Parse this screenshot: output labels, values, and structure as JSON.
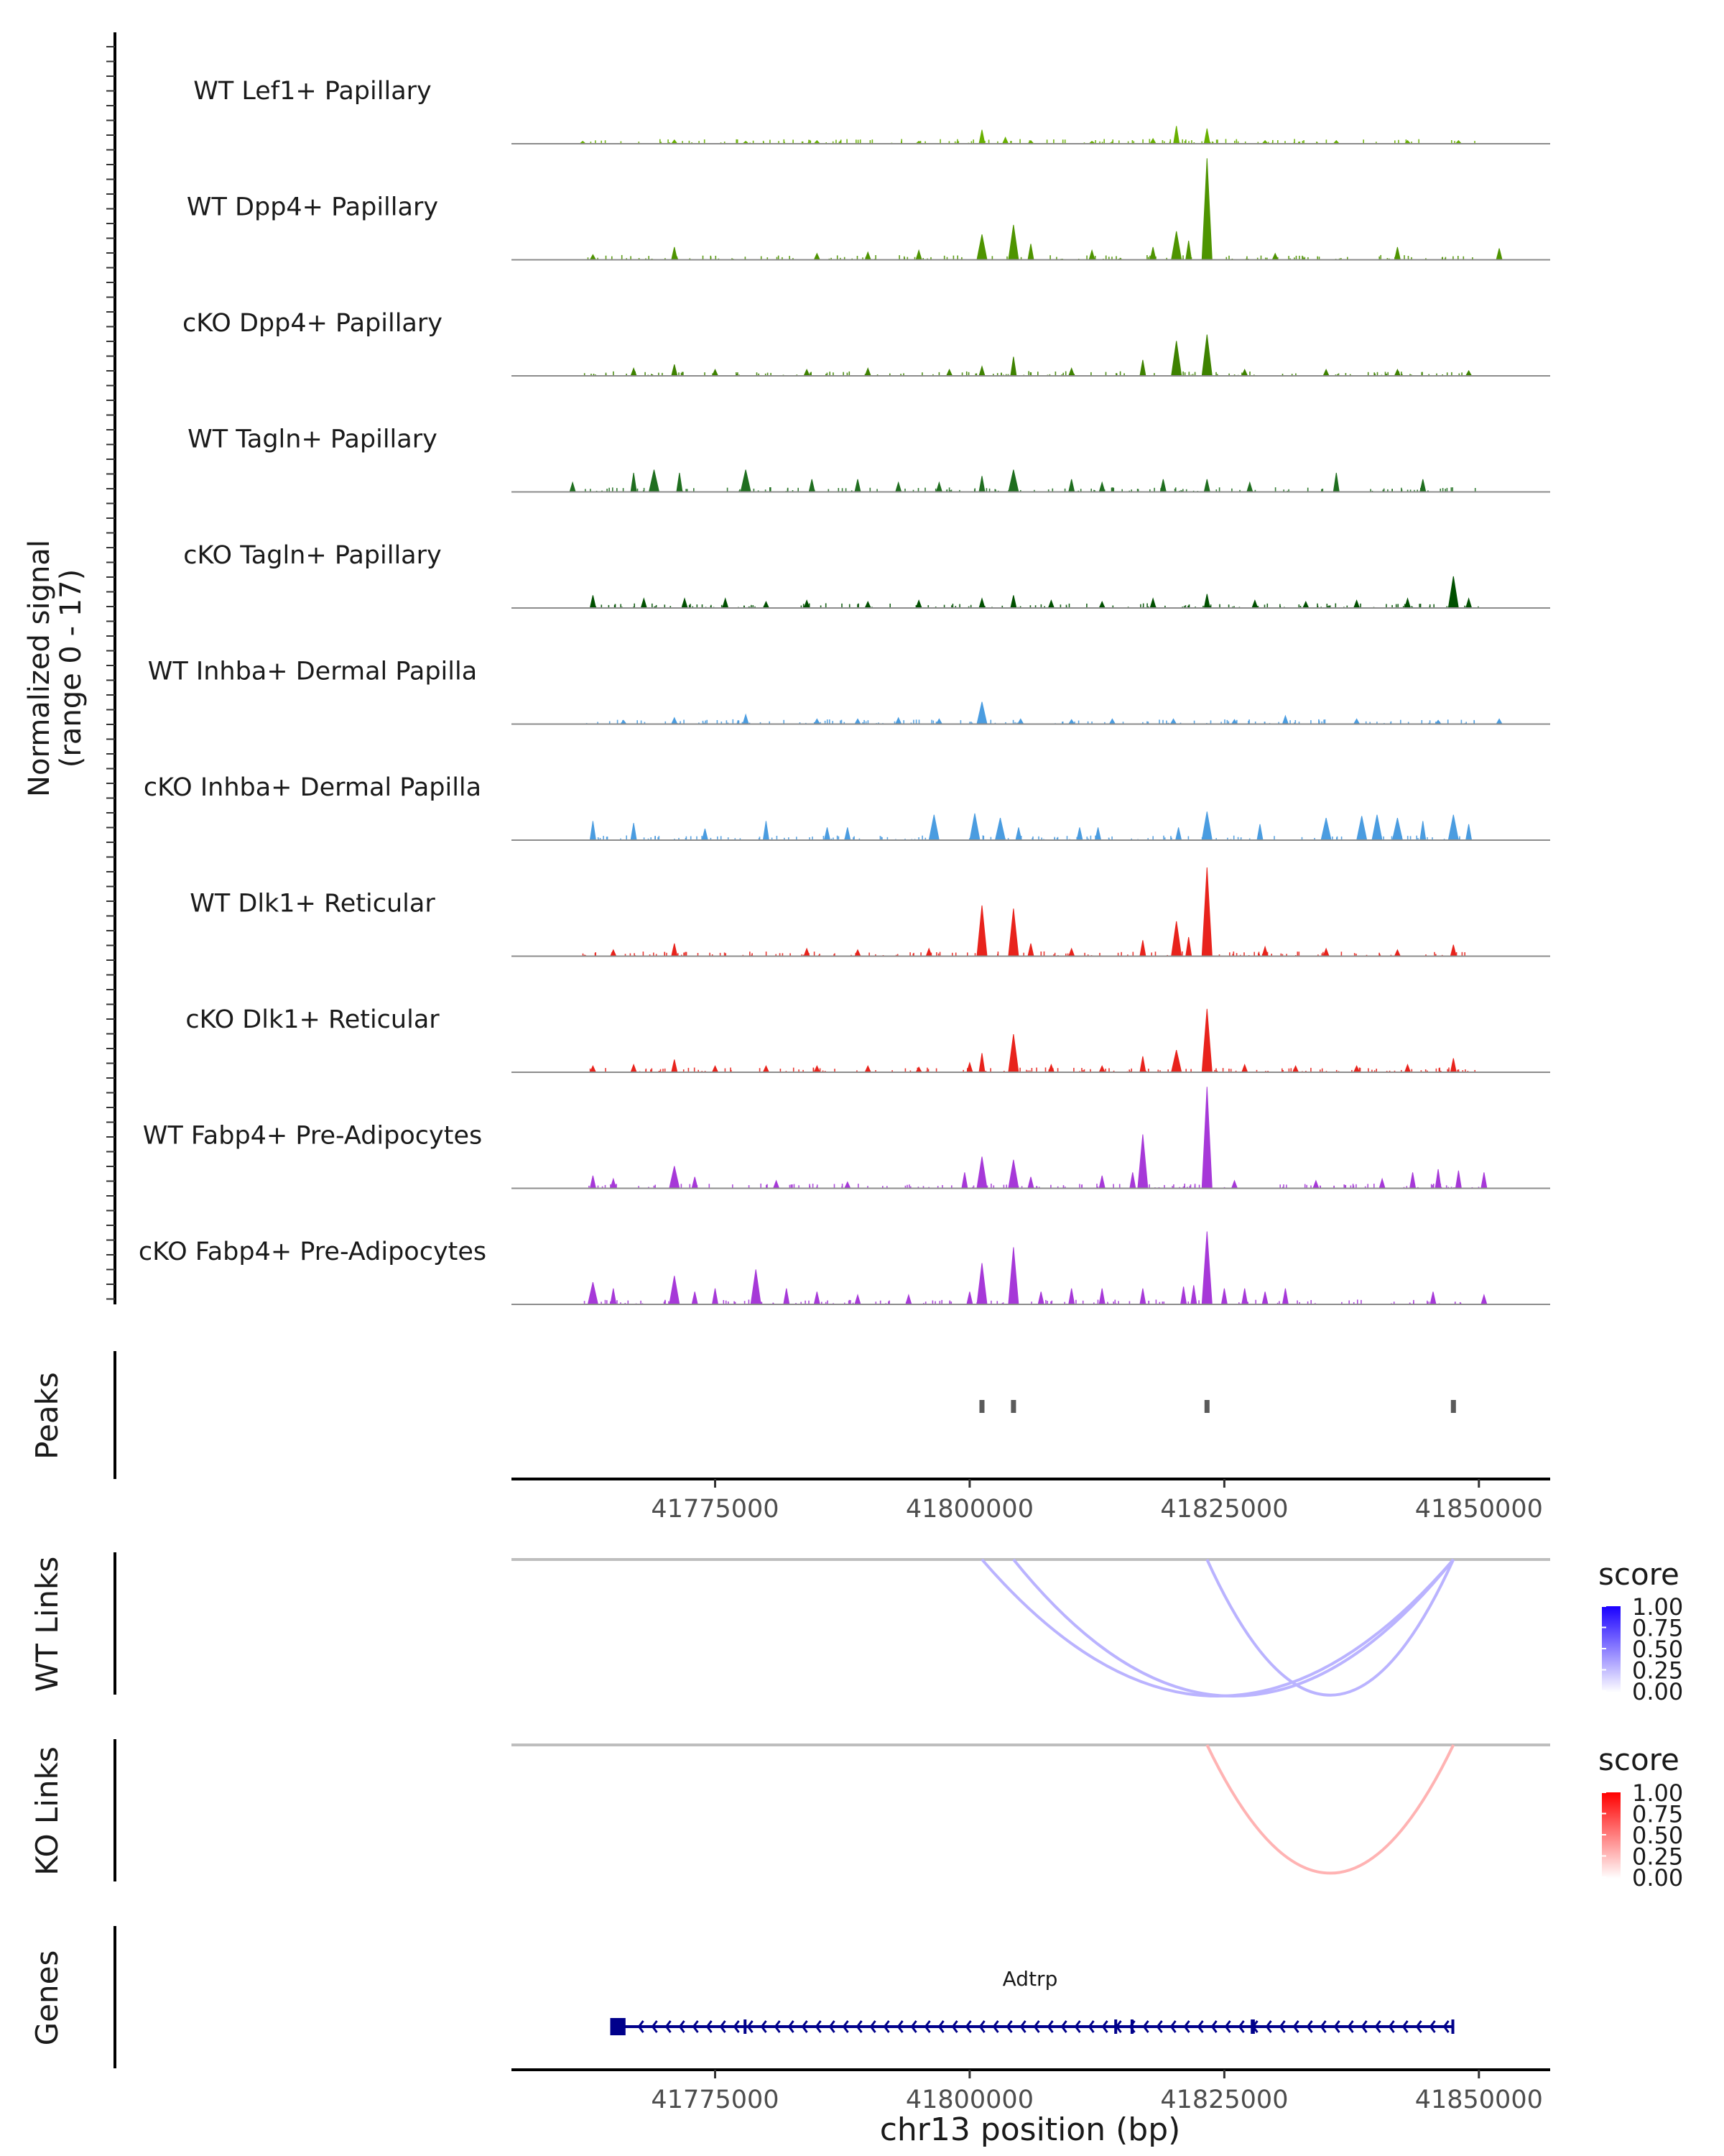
{
  "chart_data": {
    "type": "genome-coverage",
    "region": {
      "chrom": "chr13",
      "start": 41755000,
      "end": 41857000
    },
    "coverage": {
      "ylabel_line1": "Normalized signal",
      "ylabel_line2": "(range 0 - 17)",
      "ylim": [
        0,
        17
      ],
      "tracks": [
        {
          "name": "WT Lef1+ Papillary",
          "color": "#68b000",
          "peaks": [
            [
              41801200,
              2.2
            ],
            [
              41820300,
              2.8
            ],
            [
              41823300,
              2.4
            ],
            [
              41771000,
              0.6
            ],
            [
              41785000,
              0.5
            ],
            [
              41803500,
              1.0
            ],
            [
              41806000,
              0.5
            ],
            [
              41812000,
              0.4
            ],
            [
              41818000,
              0.8
            ],
            [
              41829000,
              0.5
            ],
            [
              41836000,
              0.5
            ],
            [
              41843000,
              0.5
            ],
            [
              41848000,
              0.5
            ],
            [
              41762000,
              0.4
            ],
            [
              41778000,
              0.4
            ],
            [
              41795000,
              0.4
            ]
          ]
        },
        {
          "name": "WT Dpp4+ Papillary",
          "color": "#4e9400",
          "peaks": [
            [
              41823300,
              16
            ],
            [
              41820300,
              4.5
            ],
            [
              41801200,
              4.0
            ],
            [
              41804300,
              5.5
            ],
            [
              41771000,
              2.0
            ],
            [
              41806000,
              2.5
            ],
            [
              41812000,
              1.5
            ],
            [
              41818000,
              2.0
            ],
            [
              41821500,
              3.0
            ],
            [
              41842000,
              2.0
            ],
            [
              41852000,
              1.8
            ],
            [
              41763000,
              0.8
            ],
            [
              41785000,
              1.0
            ],
            [
              41790000,
              1.2
            ],
            [
              41795000,
              1.5
            ],
            [
              41830000,
              1.0
            ]
          ]
        },
        {
          "name": "cKO Dpp4+ Papillary",
          "color": "#3e8200",
          "peaks": [
            [
              41823300,
              6.5
            ],
            [
              41820300,
              5.5
            ],
            [
              41801200,
              1.5
            ],
            [
              41804300,
              3.0
            ],
            [
              41771000,
              1.8
            ],
            [
              41767000,
              1.2
            ],
            [
              41775000,
              1.0
            ],
            [
              41784000,
              1.0
            ],
            [
              41790000,
              1.2
            ],
            [
              41798000,
              1.0
            ],
            [
              41810000,
              1.2
            ],
            [
              41817000,
              2.5
            ],
            [
              41827000,
              1.0
            ],
            [
              41835000,
              1.0
            ],
            [
              41842000,
              1.0
            ],
            [
              41849000,
              0.8
            ]
          ]
        },
        {
          "name": "WT Tagln+ Papillary",
          "color": "#1f6e1f",
          "peaks": [
            [
              41767000,
              3.0
            ],
            [
              41769000,
              3.5
            ],
            [
              41771500,
              3.0
            ],
            [
              41778000,
              3.5
            ],
            [
              41784500,
              2.0
            ],
            [
              41789000,
              2.0
            ],
            [
              41793000,
              1.5
            ],
            [
              41801200,
              2.5
            ],
            [
              41804300,
              3.5
            ],
            [
              41810000,
              2.0
            ],
            [
              41813000,
              1.5
            ],
            [
              41819000,
              2.0
            ],
            [
              41823300,
              2.0
            ],
            [
              41827500,
              1.5
            ],
            [
              41836000,
              3.0
            ],
            [
              41844500,
              2.0
            ],
            [
              41761000,
              1.5
            ],
            [
              41797000,
              1.5
            ]
          ]
        },
        {
          "name": "cKO Tagln+ Papillary",
          "color": "#005000",
          "peaks": [
            [
              41763000,
              2.0
            ],
            [
              41768000,
              1.5
            ],
            [
              41772000,
              1.5
            ],
            [
              41776000,
              1.5
            ],
            [
              41780000,
              1.0
            ],
            [
              41784000,
              1.2
            ],
            [
              41790000,
              1.0
            ],
            [
              41795000,
              1.2
            ],
            [
              41801200,
              1.5
            ],
            [
              41804300,
              2.0
            ],
            [
              41808000,
              1.2
            ],
            [
              41813000,
              1.0
            ],
            [
              41818000,
              1.5
            ],
            [
              41823300,
              2.2
            ],
            [
              41828000,
              1.2
            ],
            [
              41833000,
              1.0
            ],
            [
              41838000,
              1.2
            ],
            [
              41843000,
              1.5
            ],
            [
              41847500,
              5.0
            ],
            [
              41849000,
              1.5
            ]
          ]
        },
        {
          "name": "WT Inhba+ Dermal Papilla",
          "color": "#4a9ce0",
          "peaks": [
            [
              41801200,
              3.5
            ],
            [
              41793000,
              1.0
            ],
            [
              41771000,
              1.0
            ],
            [
              41778000,
              1.5
            ],
            [
              41766000,
              0.6
            ],
            [
              41785000,
              0.8
            ],
            [
              41789000,
              0.8
            ],
            [
              41797000,
              0.8
            ],
            [
              41805000,
              0.8
            ],
            [
              41810000,
              0.7
            ],
            [
              41814000,
              0.8
            ],
            [
              41820000,
              0.8
            ],
            [
              41826000,
              0.7
            ],
            [
              41831000,
              1.3
            ],
            [
              41838000,
              0.8
            ],
            [
              41846000,
              0.6
            ],
            [
              41852000,
              0.8
            ]
          ]
        },
        {
          "name": "cKO Inhba+ Dermal Papilla",
          "color": "#4a9ce0",
          "peaks": [
            [
              41763000,
              3.0
            ],
            [
              41767000,
              2.7
            ],
            [
              41774000,
              1.8
            ],
            [
              41780000,
              3.0
            ],
            [
              41786000,
              2.0
            ],
            [
              41788000,
              2.0
            ],
            [
              41796500,
              4.0
            ],
            [
              41800500,
              4.2
            ],
            [
              41803000,
              3.5
            ],
            [
              41804800,
              2.0
            ],
            [
              41810800,
              2.0
            ],
            [
              41812600,
              2.0
            ],
            [
              41820500,
              2.0
            ],
            [
              41823300,
              4.5
            ],
            [
              41828500,
              2.5
            ],
            [
              41835000,
              3.5
            ],
            [
              41838500,
              3.8
            ],
            [
              41840000,
              4.0
            ],
            [
              41842000,
              3.5
            ],
            [
              41844500,
              3.0
            ],
            [
              41847500,
              4.0
            ],
            [
              41849000,
              2.5
            ]
          ]
        },
        {
          "name": "WT Dlk1+ Reticular",
          "color": "#e8231c",
          "peaks": [
            [
              41823300,
              14
            ],
            [
              41801200,
              8.0
            ],
            [
              41804300,
              7.5
            ],
            [
              41820300,
              5.5
            ],
            [
              41771000,
              2.0
            ],
            [
              41765000,
              1.0
            ],
            [
              41784000,
              1.2
            ],
            [
              41789000,
              1.0
            ],
            [
              41796000,
              1.2
            ],
            [
              41806000,
              2.0
            ],
            [
              41810000,
              1.2
            ],
            [
              41817000,
              2.5
            ],
            [
              41821500,
              3.0
            ],
            [
              41829000,
              1.5
            ],
            [
              41835000,
              1.2
            ],
            [
              41842000,
              1.0
            ],
            [
              41847500,
              1.8
            ]
          ]
        },
        {
          "name": "cKO Dlk1+ Reticular",
          "color": "#e8231c",
          "peaks": [
            [
              41823300,
              10
            ],
            [
              41801200,
              3.0
            ],
            [
              41804300,
              6.0
            ],
            [
              41820300,
              3.5
            ],
            [
              41817000,
              2.5
            ],
            [
              41771000,
              2.0
            ],
            [
              41763000,
              1.0
            ],
            [
              41767000,
              1.2
            ],
            [
              41775000,
              1.0
            ],
            [
              41780000,
              1.0
            ],
            [
              41785000,
              1.0
            ],
            [
              41790000,
              1.0
            ],
            [
              41795000,
              0.8
            ],
            [
              41800000,
              1.5
            ],
            [
              41808000,
              1.2
            ],
            [
              41813000,
              1.0
            ],
            [
              41827000,
              1.2
            ],
            [
              41832000,
              1.0
            ],
            [
              41838000,
              1.0
            ],
            [
              41843000,
              1.2
            ],
            [
              41847500,
              2.2
            ]
          ]
        },
        {
          "name": "WT Fabp4+ Pre-Adipocytes",
          "color": "#a638d8",
          "peaks": [
            [
              41823300,
              16
            ],
            [
              41817000,
              8.5
            ],
            [
              41801200,
              5.0
            ],
            [
              41804300,
              4.5
            ],
            [
              41771000,
              3.5
            ],
            [
              41763000,
              2.0
            ],
            [
              41765000,
              1.5
            ],
            [
              41773000,
              1.8
            ],
            [
              41781000,
              1.2
            ],
            [
              41788000,
              1.0
            ],
            [
              41799500,
              2.5
            ],
            [
              41806000,
              1.8
            ],
            [
              41813000,
              2.0
            ],
            [
              41816000,
              2.5
            ],
            [
              41826000,
              1.2
            ],
            [
              41834000,
              1.2
            ],
            [
              41840500,
              1.5
            ],
            [
              41843500,
              2.5
            ],
            [
              41846000,
              3.0
            ],
            [
              41848000,
              2.8
            ],
            [
              41850500,
              2.5
            ]
          ]
        },
        {
          "name": "cKO Fabp4+ Pre-Adipocytes",
          "color": "#a638d8",
          "peaks": [
            [
              41823300,
              11.5
            ],
            [
              41801200,
              6.5
            ],
            [
              41804300,
              9.0
            ],
            [
              41763000,
              3.5
            ],
            [
              41765000,
              2.5
            ],
            [
              41771000,
              4.5
            ],
            [
              41773000,
              2.0
            ],
            [
              41775000,
              2.5
            ],
            [
              41779000,
              5.5
            ],
            [
              41782000,
              2.5
            ],
            [
              41785000,
              2.0
            ],
            [
              41789000,
              1.5
            ],
            [
              41794000,
              1.5
            ],
            [
              41800000,
              2.0
            ],
            [
              41807000,
              2.0
            ],
            [
              41810000,
              2.5
            ],
            [
              41813000,
              2.5
            ],
            [
              41817000,
              2.5
            ],
            [
              41821000,
              2.8
            ],
            [
              41822000,
              3.0
            ],
            [
              41825000,
              2.5
            ],
            [
              41827000,
              2.5
            ],
            [
              41829000,
              2.0
            ],
            [
              41831000,
              2.5
            ],
            [
              41845500,
              2.0
            ],
            [
              41850500,
              1.5
            ]
          ]
        }
      ]
    },
    "peaks_track": {
      "label": "Peaks",
      "peaks": [
        41801200,
        41804300,
        41823300,
        41847500
      ]
    },
    "x_axis": {
      "ticks": [
        41775000,
        41800000,
        41825000,
        41850000
      ],
      "tick_labels": [
        "41775000",
        "41800000",
        "41825000",
        "41850000"
      ],
      "xlabel": "chr13 position (bp)"
    },
    "links": [
      {
        "label": "WT Links",
        "legend_title": "score",
        "low_color": "#ffffff",
        "high_color": "#1a00ff",
        "legend_labels": [
          "1.00",
          "0.75",
          "0.50",
          "0.25",
          "0.00"
        ],
        "arcs": [
          {
            "start": 41801200,
            "end": 41847500,
            "score": 0.3
          },
          {
            "start": 41804300,
            "end": 41847500,
            "score": 0.3
          },
          {
            "start": 41823300,
            "end": 41847500,
            "score": 0.3
          }
        ]
      },
      {
        "label": "KO Links",
        "legend_title": "score",
        "low_color": "#ffffff",
        "high_color": "#ff0000",
        "legend_labels": [
          "1.00",
          "0.75",
          "0.50",
          "0.25",
          "0.00"
        ],
        "arcs": [
          {
            "start": 41823300,
            "end": 41847500,
            "score": 0.3
          }
        ]
      }
    ],
    "genes": {
      "label": "Genes",
      "items": [
        {
          "name": "Adtrp",
          "start": 41764700,
          "end": 41847500,
          "strand": "-",
          "color": "#00008b",
          "exons": [
            [
              41764700,
              41766200
            ],
            [
              41777800,
              41778000
            ],
            [
              41814200,
              41814400
            ],
            [
              41815800,
              41816000
            ],
            [
              41827600,
              41828000
            ],
            [
              41847300,
              41847500
            ]
          ]
        }
      ]
    }
  }
}
